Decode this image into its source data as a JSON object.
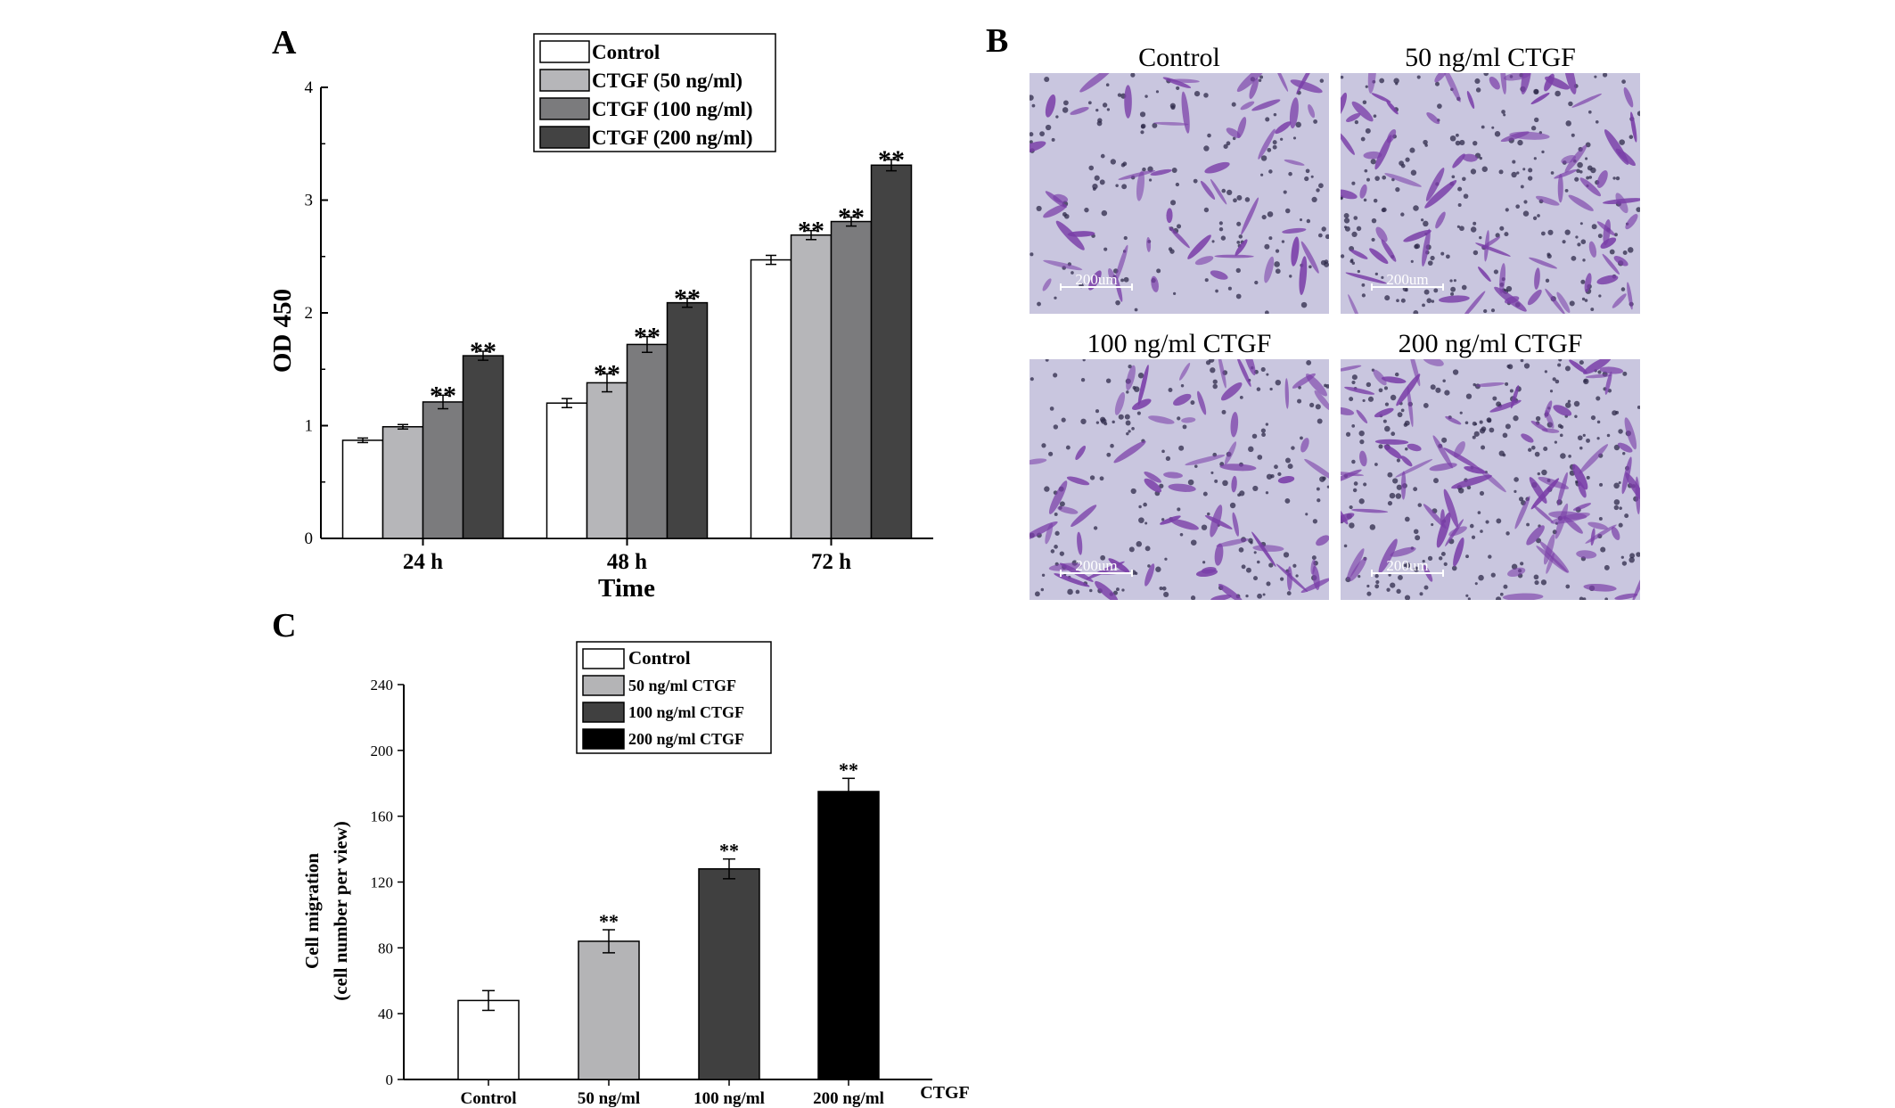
{
  "panel_labels": {
    "a": "A",
    "b": "B",
    "c": "C"
  },
  "colors": {
    "control": "#ffffff",
    "ctgf_50": "#b6b6b9",
    "ctgf_100": "#7b7b7d",
    "ctgf_200": "#434343",
    "c_50": "#b4b4b6",
    "c_100": "#404040",
    "c_200": "#000000",
    "micro_bg": "#c9c6df",
    "micro_cell": "#7a3ea8"
  },
  "chart_data": [
    {
      "type": "bar",
      "panel": "A",
      "title": "",
      "xlabel": "Time",
      "ylabel": "OD 450",
      "ylim": [
        0,
        4
      ],
      "yticks": [
        "0",
        "1",
        "2",
        "3",
        "4"
      ],
      "categories": [
        "24 h",
        "48 h",
        "72 h"
      ],
      "legend_position": "top-center",
      "series": [
        {
          "name": "Control",
          "values": [
            0.87,
            1.2,
            2.47
          ],
          "errors": [
            0.02,
            0.04,
            0.04
          ],
          "sig": [
            "",
            "",
            ""
          ]
        },
        {
          "name": "CTGF (50 ng/ml)",
          "values": [
            0.99,
            1.38,
            2.69
          ],
          "errors": [
            0.02,
            0.08,
            0.04
          ],
          "sig": [
            "",
            "**",
            "**"
          ]
        },
        {
          "name": "CTGF (100 ng/ml)",
          "values": [
            1.21,
            1.72,
            2.81
          ],
          "errors": [
            0.06,
            0.07,
            0.04
          ],
          "sig": [
            "**",
            "**",
            "**"
          ]
        },
        {
          "name": "CTGF (200 ng/ml)",
          "values": [
            1.62,
            2.09,
            3.31
          ],
          "errors": [
            0.04,
            0.04,
            0.05
          ],
          "sig": [
            "**",
            "**",
            "**"
          ]
        }
      ]
    },
    {
      "type": "bar",
      "panel": "C",
      "title": "",
      "xlabel": "CTGF",
      "ylabel_line1": "Cell migration",
      "ylabel_line2": "(cell number per view)",
      "ylim": [
        0,
        240
      ],
      "yticks": [
        "0",
        "40",
        "80",
        "120",
        "160",
        "200",
        "240"
      ],
      "categories": [
        "Control",
        "50 ng/ml",
        "100 ng/ml",
        "200 ng/ml"
      ],
      "legend_position": "top-center",
      "legend": [
        "Control",
        "50 ng/ml CTGF",
        "100 ng/ml CTGF",
        "200 ng/ml CTGF"
      ],
      "values": [
        48,
        84,
        128,
        175
      ],
      "errors": [
        6,
        7,
        6,
        8
      ],
      "sig": [
        "",
        "**",
        "**",
        "**"
      ]
    }
  ],
  "micrographs": {
    "titles": [
      "Control",
      "50 ng/ml CTGF",
      "100 ng/ml CTGF",
      "200 ng/ml CTGF"
    ],
    "scale_label": "200um",
    "density": [
      1.0,
      1.45,
      1.2,
      1.65
    ]
  }
}
